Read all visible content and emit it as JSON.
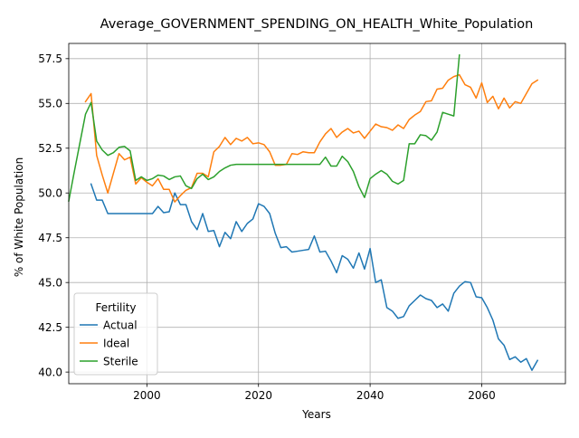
{
  "chart_data": {
    "type": "line",
    "title": "Average_GOVERNMENT_SPENDING_ON_HEALTH_White_Population",
    "xlabel": "Years",
    "ylabel": "% of White Population",
    "xlim": [
      1986,
      2075
    ],
    "ylim": [
      39.35,
      58.35
    ],
    "xticks": [
      2000,
      2020,
      2040,
      2060
    ],
    "yticks": [
      40.0,
      42.5,
      45.0,
      47.5,
      50.0,
      52.5,
      55.0,
      57.5
    ],
    "grid": true,
    "legend": {
      "title": "Fertility",
      "placement": "lower-left"
    },
    "series": [
      {
        "name": "Actual",
        "color": "#1f77b4",
        "x": [
          1990,
          1991,
          1992,
          1993,
          1994,
          1995,
          1996,
          1997,
          1998,
          1999,
          2000,
          2001,
          2002,
          2003,
          2004,
          2005,
          2006,
          2007,
          2008,
          2009,
          2010,
          2011,
          2012,
          2013,
          2014,
          2015,
          2016,
          2017,
          2018,
          2019,
          2020,
          2021,
          2022,
          2023,
          2024,
          2025,
          2026,
          2027,
          2028,
          2029,
          2030,
          2031,
          2032,
          2033,
          2034,
          2035,
          2036,
          2037,
          2038,
          2039,
          2040,
          2041,
          2042,
          2043,
          2044,
          2045,
          2046,
          2047,
          2048,
          2049,
          2050,
          2051,
          2052,
          2053,
          2054,
          2055,
          2056,
          2057,
          2058,
          2059,
          2060,
          2061,
          2062,
          2063,
          2064,
          2065,
          2066,
          2067,
          2068,
          2069,
          2070
        ],
        "values": [
          50.5,
          49.6,
          49.6,
          48.85,
          48.85,
          48.85,
          48.85,
          48.85,
          48.85,
          48.85,
          48.85,
          48.85,
          49.25,
          48.9,
          48.95,
          50.0,
          49.35,
          49.35,
          48.4,
          47.95,
          48.85,
          47.85,
          47.9,
          47.0,
          47.8,
          47.45,
          48.4,
          47.85,
          48.3,
          48.55,
          49.4,
          49.25,
          48.85,
          47.75,
          46.95,
          47.0,
          46.7,
          46.75,
          46.8,
          46.85,
          47.6,
          46.7,
          46.75,
          46.2,
          45.55,
          46.5,
          46.3,
          45.8,
          46.65,
          45.75,
          46.9,
          45.0,
          45.15,
          43.6,
          43.4,
          43.0,
          43.1,
          43.7,
          44.0,
          44.3,
          44.1,
          44.0,
          43.6,
          43.8,
          43.4,
          44.4,
          44.8,
          45.05,
          45.0,
          44.2,
          44.15,
          43.6,
          42.9,
          41.85,
          41.5,
          40.7,
          40.85,
          40.55,
          40.75,
          40.1,
          40.65
        ]
      },
      {
        "name": "Ideal",
        "color": "#ff7f0e",
        "x": [
          1989,
          1990,
          1991,
          1992,
          1993,
          1994,
          1995,
          1996,
          1997,
          1998,
          1999,
          2000,
          2001,
          2002,
          2003,
          2004,
          2005,
          2006,
          2007,
          2008,
          2009,
          2010,
          2011,
          2012,
          2013,
          2014,
          2015,
          2016,
          2017,
          2018,
          2019,
          2020,
          2021,
          2022,
          2023,
          2024,
          2025,
          2026,
          2027,
          2028,
          2029,
          2030,
          2031,
          2032,
          2033,
          2034,
          2035,
          2036,
          2037,
          2038,
          2039,
          2040,
          2041,
          2042,
          2043,
          2044,
          2045,
          2046,
          2047,
          2048,
          2049,
          2050,
          2051,
          2052,
          2053,
          2054,
          2055,
          2056,
          2057,
          2058,
          2059,
          2060,
          2061,
          2062,
          2063,
          2064,
          2065,
          2066,
          2067,
          2068,
          2069,
          2070
        ],
        "values": [
          55.1,
          55.55,
          52.1,
          51.0,
          50.0,
          51.1,
          52.2,
          51.85,
          52.0,
          50.5,
          50.85,
          50.6,
          50.4,
          50.8,
          50.2,
          50.2,
          49.5,
          49.85,
          50.15,
          50.3,
          51.1,
          51.1,
          50.9,
          52.3,
          52.6,
          53.1,
          52.7,
          53.05,
          52.9,
          53.1,
          52.75,
          52.8,
          52.7,
          52.3,
          51.55,
          51.55,
          51.6,
          52.2,
          52.15,
          52.3,
          52.25,
          52.25,
          52.85,
          53.3,
          53.6,
          53.1,
          53.4,
          53.6,
          53.35,
          53.45,
          53.05,
          53.45,
          53.85,
          53.7,
          53.65,
          53.5,
          53.8,
          53.6,
          54.1,
          54.35,
          54.55,
          55.1,
          55.15,
          55.8,
          55.85,
          56.3,
          56.5,
          56.6,
          56.05,
          55.9,
          55.3,
          56.15,
          55.05,
          55.4,
          54.7,
          55.3,
          54.75,
          55.1,
          55.0,
          55.55,
          56.1,
          56.3
        ]
      },
      {
        "name": "Sterile",
        "color": "#2ca02c",
        "x": [
          1986,
          1987,
          1988,
          1989,
          1990,
          1991,
          1992,
          1993,
          1994,
          1995,
          1996,
          1997,
          1998,
          1999,
          2000,
          2001,
          2002,
          2003,
          2004,
          2005,
          2006,
          2007,
          2008,
          2009,
          2010,
          2011,
          2012,
          2013,
          2014,
          2015,
          2016,
          2017,
          2018,
          2019,
          2020,
          2021,
          2022,
          2023,
          2024,
          2025,
          2026,
          2027,
          2028,
          2029,
          2030,
          2031,
          2032,
          2033,
          2034,
          2035,
          2036,
          2037,
          2038,
          2039,
          2040,
          2041,
          2042,
          2043,
          2044,
          2045,
          2046,
          2047,
          2048,
          2049,
          2050,
          2051,
          2052,
          2053,
          2054,
          2055,
          2056
        ],
        "values": [
          49.55,
          51.2,
          52.8,
          54.4,
          55.05,
          52.9,
          52.4,
          52.1,
          52.25,
          52.55,
          52.6,
          52.35,
          50.7,
          50.9,
          50.7,
          50.8,
          51.0,
          50.95,
          50.75,
          50.9,
          50.95,
          50.4,
          50.25,
          50.8,
          51.05,
          50.75,
          50.9,
          51.2,
          51.4,
          51.55,
          51.6,
          51.6,
          51.6,
          51.6,
          51.6,
          51.6,
          51.6,
          51.6,
          51.6,
          51.6,
          51.6,
          51.6,
          51.6,
          51.6,
          51.6,
          51.6,
          52.0,
          51.5,
          51.5,
          52.05,
          51.75,
          51.2,
          50.35,
          49.75,
          50.8,
          51.05,
          51.25,
          51.05,
          50.65,
          50.5,
          50.7,
          52.75,
          52.75,
          53.25,
          53.2,
          52.95,
          53.4,
          54.5,
          54.4,
          54.3,
          57.7
        ]
      }
    ]
  }
}
